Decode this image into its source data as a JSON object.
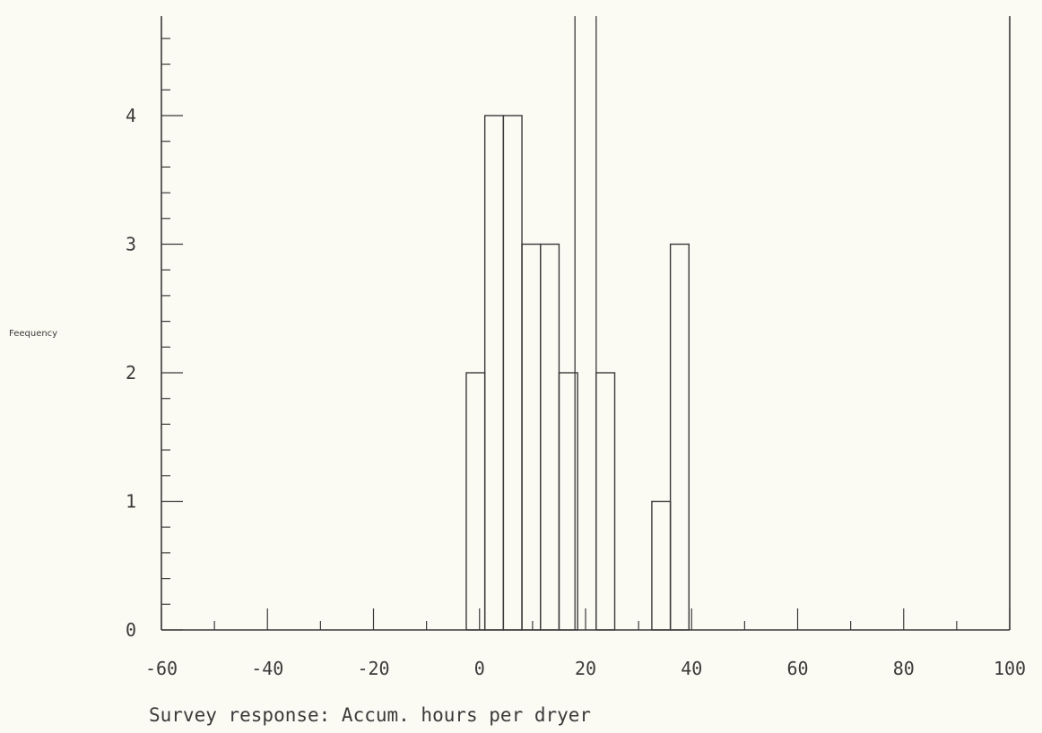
{
  "chart_data": {
    "type": "bar",
    "title": "",
    "xlabel": "Survey response: Accum. hours per dryer",
    "ylabel": "Feequency",
    "xlim": [
      -60,
      100
    ],
    "ylim": [
      0,
      4
    ],
    "x_ticks": [
      "-60",
      "-40",
      "-20",
      "0",
      "20",
      "40",
      "60",
      "80",
      "100"
    ],
    "y_ticks": [
      "0",
      "1",
      "2",
      "3",
      "4"
    ],
    "bin_width": 3.5,
    "bars": [
      {
        "x_start": -2.5,
        "value": 2
      },
      {
        "x_start": 1.0,
        "value": 4
      },
      {
        "x_start": 4.5,
        "value": 4
      },
      {
        "x_start": 8.0,
        "value": 3
      },
      {
        "x_start": 11.5,
        "value": 3
      },
      {
        "x_start": 15.0,
        "value": 2
      },
      {
        "x_start": 18.5,
        "value": 0
      },
      {
        "x_start": 22.0,
        "value": 2
      },
      {
        "x_start": 32.5,
        "value": 1
      },
      {
        "x_start": 36.0,
        "value": 3
      }
    ],
    "reference_lines_x": [
      18.0,
      22.0
    ],
    "grid": false
  }
}
